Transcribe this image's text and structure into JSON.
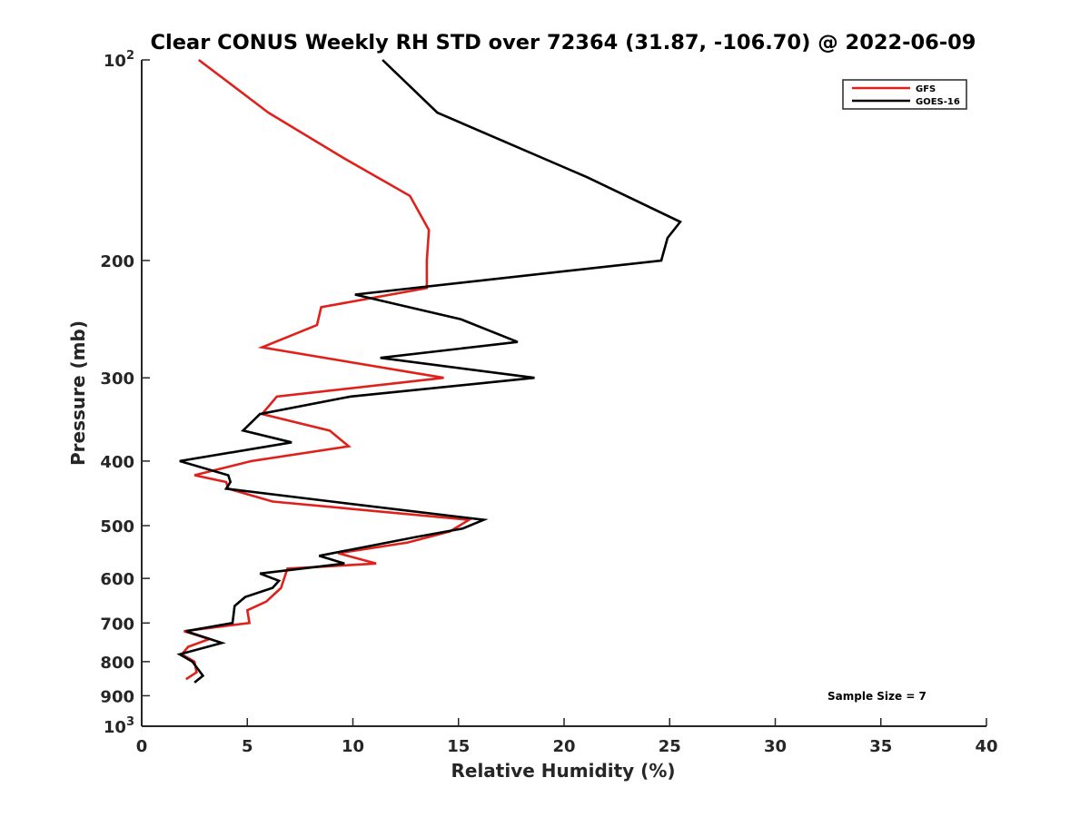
{
  "chart_data": {
    "type": "line",
    "title": "Clear CONUS Weekly RH STD over 72364 (31.87, -106.70) @ 2022-06-09",
    "xlabel": "Relative Humidity (%)",
    "ylabel": "Pressure (mb)",
    "xlim": [
      0,
      40
    ],
    "ylim": [
      100,
      1000
    ],
    "y_scale": "log",
    "y_reversed": true,
    "x_ticks": [
      0,
      5,
      10,
      15,
      20,
      25,
      30,
      35,
      40
    ],
    "y_ticks": [
      {
        "value": 100,
        "base": "10",
        "exp": "2"
      },
      {
        "value": 200,
        "label": "200"
      },
      {
        "value": 300,
        "label": "300"
      },
      {
        "value": 400,
        "label": "400"
      },
      {
        "value": 500,
        "label": "500"
      },
      {
        "value": 600,
        "label": "600"
      },
      {
        "value": 700,
        "label": "700"
      },
      {
        "value": 800,
        "label": "800"
      },
      {
        "value": 900,
        "label": "900"
      },
      {
        "value": 1000,
        "base": "10",
        "exp": "3"
      }
    ],
    "grid": false,
    "legend_position": "top-right",
    "annotation": "Sample Size = 7",
    "series": [
      {
        "name": "GFS",
        "color": "#e0201b",
        "points": [
          [
            2.7,
            100
          ],
          [
            6.0,
            120
          ],
          [
            9.5,
            140
          ],
          [
            12.7,
            160
          ],
          [
            13.6,
            180
          ],
          [
            13.5,
            200
          ],
          [
            13.5,
            220
          ],
          [
            8.5,
            235
          ],
          [
            8.3,
            250
          ],
          [
            5.7,
            270
          ],
          [
            14.3,
            300
          ],
          [
            6.4,
            320
          ],
          [
            5.7,
            340
          ],
          [
            8.9,
            360
          ],
          [
            9.8,
            380
          ],
          [
            5.2,
            400
          ],
          [
            2.5,
            420
          ],
          [
            4.0,
            430
          ],
          [
            4.1,
            440
          ],
          [
            6.2,
            460
          ],
          [
            15.5,
            490
          ],
          [
            14.6,
            510
          ],
          [
            12.6,
            530
          ],
          [
            9.3,
            550
          ],
          [
            11.1,
            570
          ],
          [
            6.9,
            580
          ],
          [
            6.6,
            620
          ],
          [
            5.9,
            650
          ],
          [
            5.0,
            670
          ],
          [
            5.1,
            700
          ],
          [
            2.0,
            720
          ],
          [
            3.2,
            740
          ],
          [
            2.2,
            760
          ],
          [
            1.9,
            780
          ],
          [
            2.5,
            800
          ],
          [
            2.6,
            830
          ],
          [
            2.1,
            850
          ]
        ]
      },
      {
        "name": "GOES-16",
        "color": "#000000",
        "points": [
          [
            11.4,
            100
          ],
          [
            14.0,
            120
          ],
          [
            21.1,
            150
          ],
          [
            25.5,
            175
          ],
          [
            24.9,
            185
          ],
          [
            24.6,
            200
          ],
          [
            10.1,
            225
          ],
          [
            15.1,
            245
          ],
          [
            17.8,
            265
          ],
          [
            11.3,
            280
          ],
          [
            18.6,
            300
          ],
          [
            9.9,
            320
          ],
          [
            5.6,
            340
          ],
          [
            4.8,
            360
          ],
          [
            7.1,
            375
          ],
          [
            1.8,
            400
          ],
          [
            4.1,
            420
          ],
          [
            4.2,
            430
          ],
          [
            4.0,
            440
          ],
          [
            9.0,
            460
          ],
          [
            16.2,
            490
          ],
          [
            15.2,
            505
          ],
          [
            13.0,
            520
          ],
          [
            8.4,
            555
          ],
          [
            9.6,
            570
          ],
          [
            5.6,
            590
          ],
          [
            6.5,
            605
          ],
          [
            6.2,
            620
          ],
          [
            4.9,
            640
          ],
          [
            4.4,
            660
          ],
          [
            4.3,
            700
          ],
          [
            2.1,
            720
          ],
          [
            3.8,
            750
          ],
          [
            1.8,
            780
          ],
          [
            2.4,
            800
          ],
          [
            2.9,
            840
          ],
          [
            2.5,
            860
          ]
        ]
      }
    ]
  }
}
